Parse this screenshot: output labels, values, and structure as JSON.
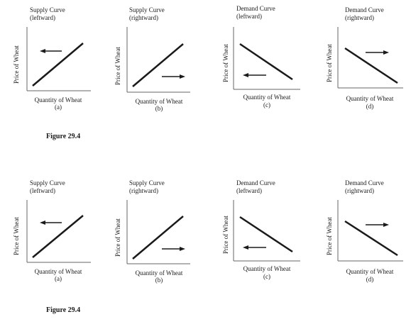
{
  "figures": [
    {
      "caption": "Figure 29.4",
      "panels": [
        {
          "title_line1": "Supply Curve",
          "title_line2": "(leftward)",
          "ylabel": "Price of Wheat",
          "xlabel": "Quantity of Wheat",
          "letter": "(a)",
          "curve": "supply",
          "shift": "left"
        },
        {
          "title_line1": "Supply Curve",
          "title_line2": "(rightward)",
          "ylabel": "Price of Wheat",
          "xlabel": "Quantity of Wheat",
          "letter": "(b)",
          "curve": "supply",
          "shift": "right"
        },
        {
          "title_line1": "Demand Curve",
          "title_line2": "(leftward)",
          "ylabel": "Price of Wheat",
          "xlabel": "Quantity of Wheat",
          "letter": "(c)",
          "curve": "demand",
          "shift": "left"
        },
        {
          "title_line1": "Demand Curve",
          "title_line2": "(rightward)",
          "ylabel": "Price of Wheat",
          "xlabel": "Quantity of Wheat",
          "letter": "(d)",
          "curve": "demand",
          "shift": "right"
        }
      ]
    },
    {
      "caption": "Figure 29.4",
      "panels": [
        {
          "title_line1": "Supply Curve",
          "title_line2": "(leftward)",
          "ylabel": "Price of Wheat",
          "xlabel": "Quantity of Wheat",
          "letter": "(a)",
          "curve": "supply",
          "shift": "left"
        },
        {
          "title_line1": "Supply Curve",
          "title_line2": "(rightward)",
          "ylabel": "Price of Wheat",
          "xlabel": "Quantity of Wheat",
          "letter": "(b)",
          "curve": "supply",
          "shift": "right"
        },
        {
          "title_line1": "Demand Curve",
          "title_line2": "(leftward)",
          "ylabel": "Price of Wheat",
          "xlabel": "Quantity of Wheat",
          "letter": "(c)",
          "curve": "demand",
          "shift": "left"
        },
        {
          "title_line1": "Demand Curve",
          "title_line2": "(rightward)",
          "ylabel": "Price of Wheat",
          "xlabel": "Quantity of Wheat",
          "letter": "(d)",
          "curve": "demand",
          "shift": "right"
        }
      ]
    }
  ]
}
